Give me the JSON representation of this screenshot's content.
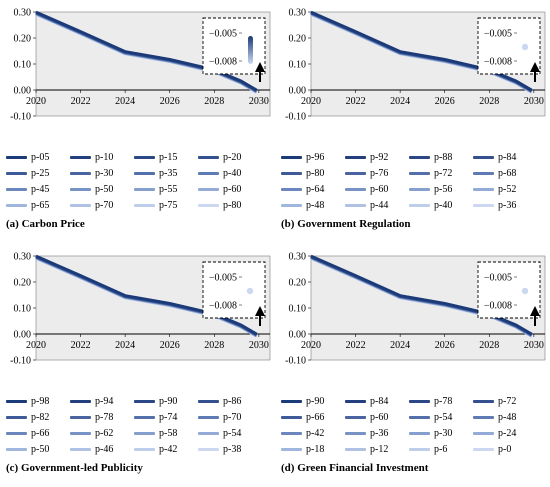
{
  "chart_data": [
    {
      "type": "line",
      "caption": "(a) Carbon Price",
      "x_ticks": [
        "2020",
        "2022",
        "2024",
        "2026",
        "2028",
        "2030"
      ],
      "y_ticks": [
        "0.30",
        "0.20",
        "0.10",
        "0.00",
        "-0.10"
      ],
      "xlim": [
        2020,
        2030.5
      ],
      "ylim": [
        -0.1,
        0.3
      ],
      "grid": false,
      "inset": {
        "y_ticks": [
          "−0.005",
          "−0.008"
        ],
        "marker": "bar"
      },
      "series": [
        {
          "name": "p-05",
          "color": "#1b3a78"
        },
        {
          "name": "p-10",
          "color": "#233f7d"
        },
        {
          "name": "p-15",
          "color": "#2c4786"
        },
        {
          "name": "p-20",
          "color": "#34508e"
        },
        {
          "name": "p-25",
          "color": "#3e5a98"
        },
        {
          "name": "p-30",
          "color": "#4964a1"
        },
        {
          "name": "p-35",
          "color": "#5470aa"
        },
        {
          "name": "p-40",
          "color": "#5f7bb4"
        },
        {
          "name": "p-45",
          "color": "#6b87bd"
        },
        {
          "name": "p-50",
          "color": "#7893c6"
        },
        {
          "name": "p-55",
          "color": "#859fce"
        },
        {
          "name": "p-60",
          "color": "#93abd6"
        },
        {
          "name": "p-65",
          "color": "#a1b6dd"
        },
        {
          "name": "p-70",
          "color": "#afc2e4"
        },
        {
          "name": "p-75",
          "color": "#bdcdea"
        },
        {
          "name": "p-80",
          "color": "#cbd8f0"
        }
      ],
      "x": [
        2020,
        2022,
        2024,
        2026,
        2028,
        2029.2,
        2029.9
      ],
      "values": [
        0.3,
        0.225,
        0.148,
        0.118,
        0.078,
        0.035,
        0.0
      ]
    },
    {
      "type": "line",
      "caption": "(b) Government Regulation",
      "x_ticks": [
        "2020",
        "2022",
        "2024",
        "2026",
        "2028",
        "2030"
      ],
      "y_ticks": [
        "0.30",
        "0.20",
        "0.10",
        "0.00",
        "-0.10"
      ],
      "xlim": [
        2020,
        2030.5
      ],
      "ylim": [
        -0.1,
        0.3
      ],
      "grid": false,
      "inset": {
        "y_ticks": [
          "−0.005",
          "−0.008"
        ],
        "marker": "dot"
      },
      "series": [
        {
          "name": "p-96",
          "color": "#1b3a78"
        },
        {
          "name": "p-92",
          "color": "#233f7d"
        },
        {
          "name": "p-88",
          "color": "#2c4786"
        },
        {
          "name": "p-84",
          "color": "#34508e"
        },
        {
          "name": "p-80",
          "color": "#3e5a98"
        },
        {
          "name": "p-76",
          "color": "#4964a1"
        },
        {
          "name": "p-72",
          "color": "#5470aa"
        },
        {
          "name": "p-68",
          "color": "#5f7bb4"
        },
        {
          "name": "p-64",
          "color": "#6b87bd"
        },
        {
          "name": "p-60",
          "color": "#7893c6"
        },
        {
          "name": "p-56",
          "color": "#859fce"
        },
        {
          "name": "p-52",
          "color": "#93abd6"
        },
        {
          "name": "p-48",
          "color": "#a1b6dd"
        },
        {
          "name": "p-44",
          "color": "#afc2e4"
        },
        {
          "name": "p-40",
          "color": "#bdcdea"
        },
        {
          "name": "p-36",
          "color": "#cbd8f0"
        }
      ],
      "x": [
        2020,
        2022,
        2024,
        2026,
        2028,
        2029.2,
        2029.9
      ],
      "values": [
        0.3,
        0.225,
        0.148,
        0.118,
        0.078,
        0.035,
        0.0
      ]
    },
    {
      "type": "line",
      "caption": "(c) Government-led Publicity",
      "x_ticks": [
        "2020",
        "2022",
        "2024",
        "2026",
        "2028",
        "2030"
      ],
      "y_ticks": [
        "0.30",
        "0.20",
        "0.10",
        "0.00",
        "-0.10"
      ],
      "xlim": [
        2020,
        2030.5
      ],
      "ylim": [
        -0.1,
        0.3
      ],
      "grid": false,
      "inset": {
        "y_ticks": [
          "−0.005",
          "−0.008"
        ],
        "marker": "dot"
      },
      "series": [
        {
          "name": "p-98",
          "color": "#1b3a78"
        },
        {
          "name": "p-94",
          "color": "#233f7d"
        },
        {
          "name": "p-90",
          "color": "#2c4786"
        },
        {
          "name": "p-86",
          "color": "#34508e"
        },
        {
          "name": "p-82",
          "color": "#3e5a98"
        },
        {
          "name": "p-78",
          "color": "#4964a1"
        },
        {
          "name": "p-74",
          "color": "#5470aa"
        },
        {
          "name": "p-70",
          "color": "#5f7bb4"
        },
        {
          "name": "p-66",
          "color": "#6b87bd"
        },
        {
          "name": "p-62",
          "color": "#7893c6"
        },
        {
          "name": "p-58",
          "color": "#859fce"
        },
        {
          "name": "p-54",
          "color": "#93abd6"
        },
        {
          "name": "p-50",
          "color": "#a1b6dd"
        },
        {
          "name": "p-46",
          "color": "#afc2e4"
        },
        {
          "name": "p-42",
          "color": "#bdcdea"
        },
        {
          "name": "p-38",
          "color": "#cbd8f0"
        }
      ],
      "x": [
        2020,
        2022,
        2024,
        2026,
        2028,
        2029.2,
        2029.9
      ],
      "values": [
        0.3,
        0.225,
        0.148,
        0.118,
        0.078,
        0.035,
        0.0
      ]
    },
    {
      "type": "line",
      "caption": "(d) Green Financial Investment",
      "x_ticks": [
        "2020",
        "2022",
        "2024",
        "2026",
        "2028",
        "2030"
      ],
      "y_ticks": [
        "0.30",
        "0.20",
        "0.10",
        "0.00",
        "-0.10"
      ],
      "xlim": [
        2020,
        2030.5
      ],
      "ylim": [
        -0.1,
        0.3
      ],
      "grid": false,
      "inset": {
        "y_ticks": [
          "−0.005",
          "−0.008"
        ],
        "marker": "dot"
      },
      "series": [
        {
          "name": "p-90",
          "color": "#1b3a78"
        },
        {
          "name": "p-84",
          "color": "#233f7d"
        },
        {
          "name": "p-78",
          "color": "#2c4786"
        },
        {
          "name": "p-72",
          "color": "#34508e"
        },
        {
          "name": "p-66",
          "color": "#3e5a98"
        },
        {
          "name": "p-60",
          "color": "#4964a1"
        },
        {
          "name": "p-54",
          "color": "#5470aa"
        },
        {
          "name": "p-48",
          "color": "#5f7bb4"
        },
        {
          "name": "p-42",
          "color": "#6b87bd"
        },
        {
          "name": "p-36",
          "color": "#7893c6"
        },
        {
          "name": "p-30",
          "color": "#859fce"
        },
        {
          "name": "p-24",
          "color": "#93abd6"
        },
        {
          "name": "p-18",
          "color": "#a1b6dd"
        },
        {
          "name": "p-12",
          "color": "#afc2e4"
        },
        {
          "name": "p-6",
          "color": "#bdcdea"
        },
        {
          "name": "p-0",
          "color": "#cbd8f0"
        }
      ],
      "x": [
        2020,
        2022,
        2024,
        2026,
        2028,
        2029.2,
        2029.9
      ],
      "values": [
        0.3,
        0.225,
        0.148,
        0.118,
        0.078,
        0.035,
        0.0
      ]
    }
  ]
}
